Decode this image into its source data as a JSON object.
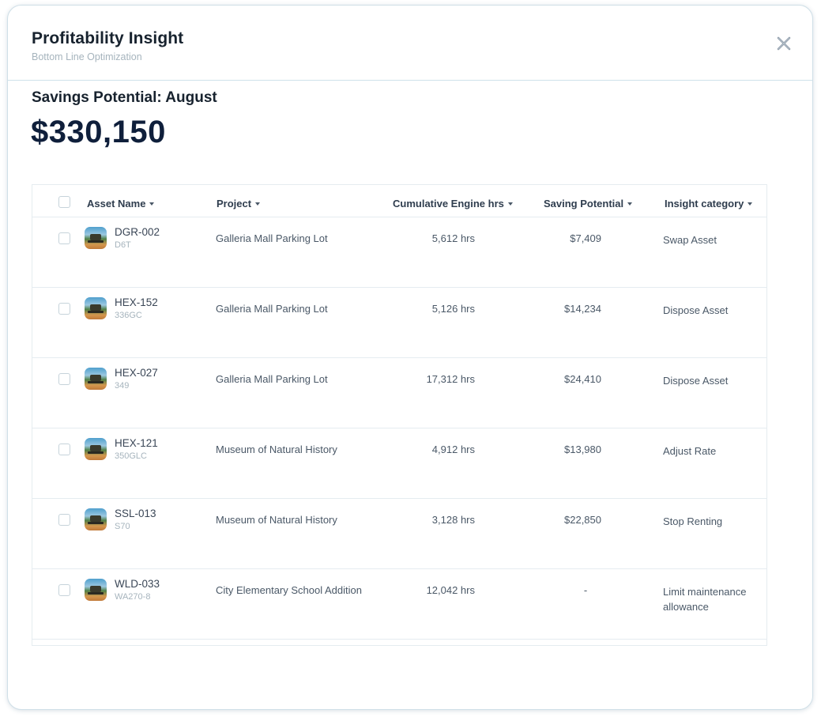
{
  "header": {
    "title": "Profitability Insight",
    "subtitle": "Bottom Line Optimization"
  },
  "savings": {
    "label": "Savings Potential: August",
    "value": "$330,150"
  },
  "table": {
    "columns": [
      {
        "key": "asset_name",
        "label": "Asset Name"
      },
      {
        "key": "project",
        "label": "Project"
      },
      {
        "key": "hours",
        "label": "Cumulative Engine hrs"
      },
      {
        "key": "saving",
        "label": "Saving Potential"
      },
      {
        "key": "category",
        "label": "Insight category"
      }
    ],
    "rows": [
      {
        "name": "DGR-002",
        "model": "D6T",
        "project": "Galleria Mall Parking Lot",
        "hours": "5,612 hrs",
        "saving": "$7,409",
        "category": "Swap Asset"
      },
      {
        "name": "HEX-152",
        "model": "336GC",
        "project": "Galleria Mall Parking Lot",
        "hours": "5,126 hrs",
        "saving": "$14,234",
        "category": "Dispose Asset"
      },
      {
        "name": "HEX-027",
        "model": "349",
        "project": "Galleria Mall Parking Lot",
        "hours": "17,312 hrs",
        "saving": "$24,410",
        "category": "Dispose Asset"
      },
      {
        "name": "HEX-121",
        "model": "350GLC",
        "project": "Museum of Natural History",
        "hours": "4,912 hrs",
        "saving": "$13,980",
        "category": "Adjust Rate"
      },
      {
        "name": "SSL-013",
        "model": "S70",
        "project": "Museum of Natural History",
        "hours": "3,128 hrs",
        "saving": "$22,850",
        "category": "Stop Renting"
      },
      {
        "name": "WLD-033",
        "model": "WA270-8",
        "project": "City Elementary School Addition",
        "hours": "12,042 hrs",
        "saving": "-",
        "category": "Limit maintenance allowance"
      }
    ]
  },
  "icons": {
    "close": "close-icon",
    "sort": "caret-down-icon",
    "thumbnail": "equipment-thumbnail"
  },
  "colors": {
    "title": "#17222e",
    "value": "#0f1f3b",
    "muted": "#a6b4bd",
    "border": "#e5ecf0"
  }
}
